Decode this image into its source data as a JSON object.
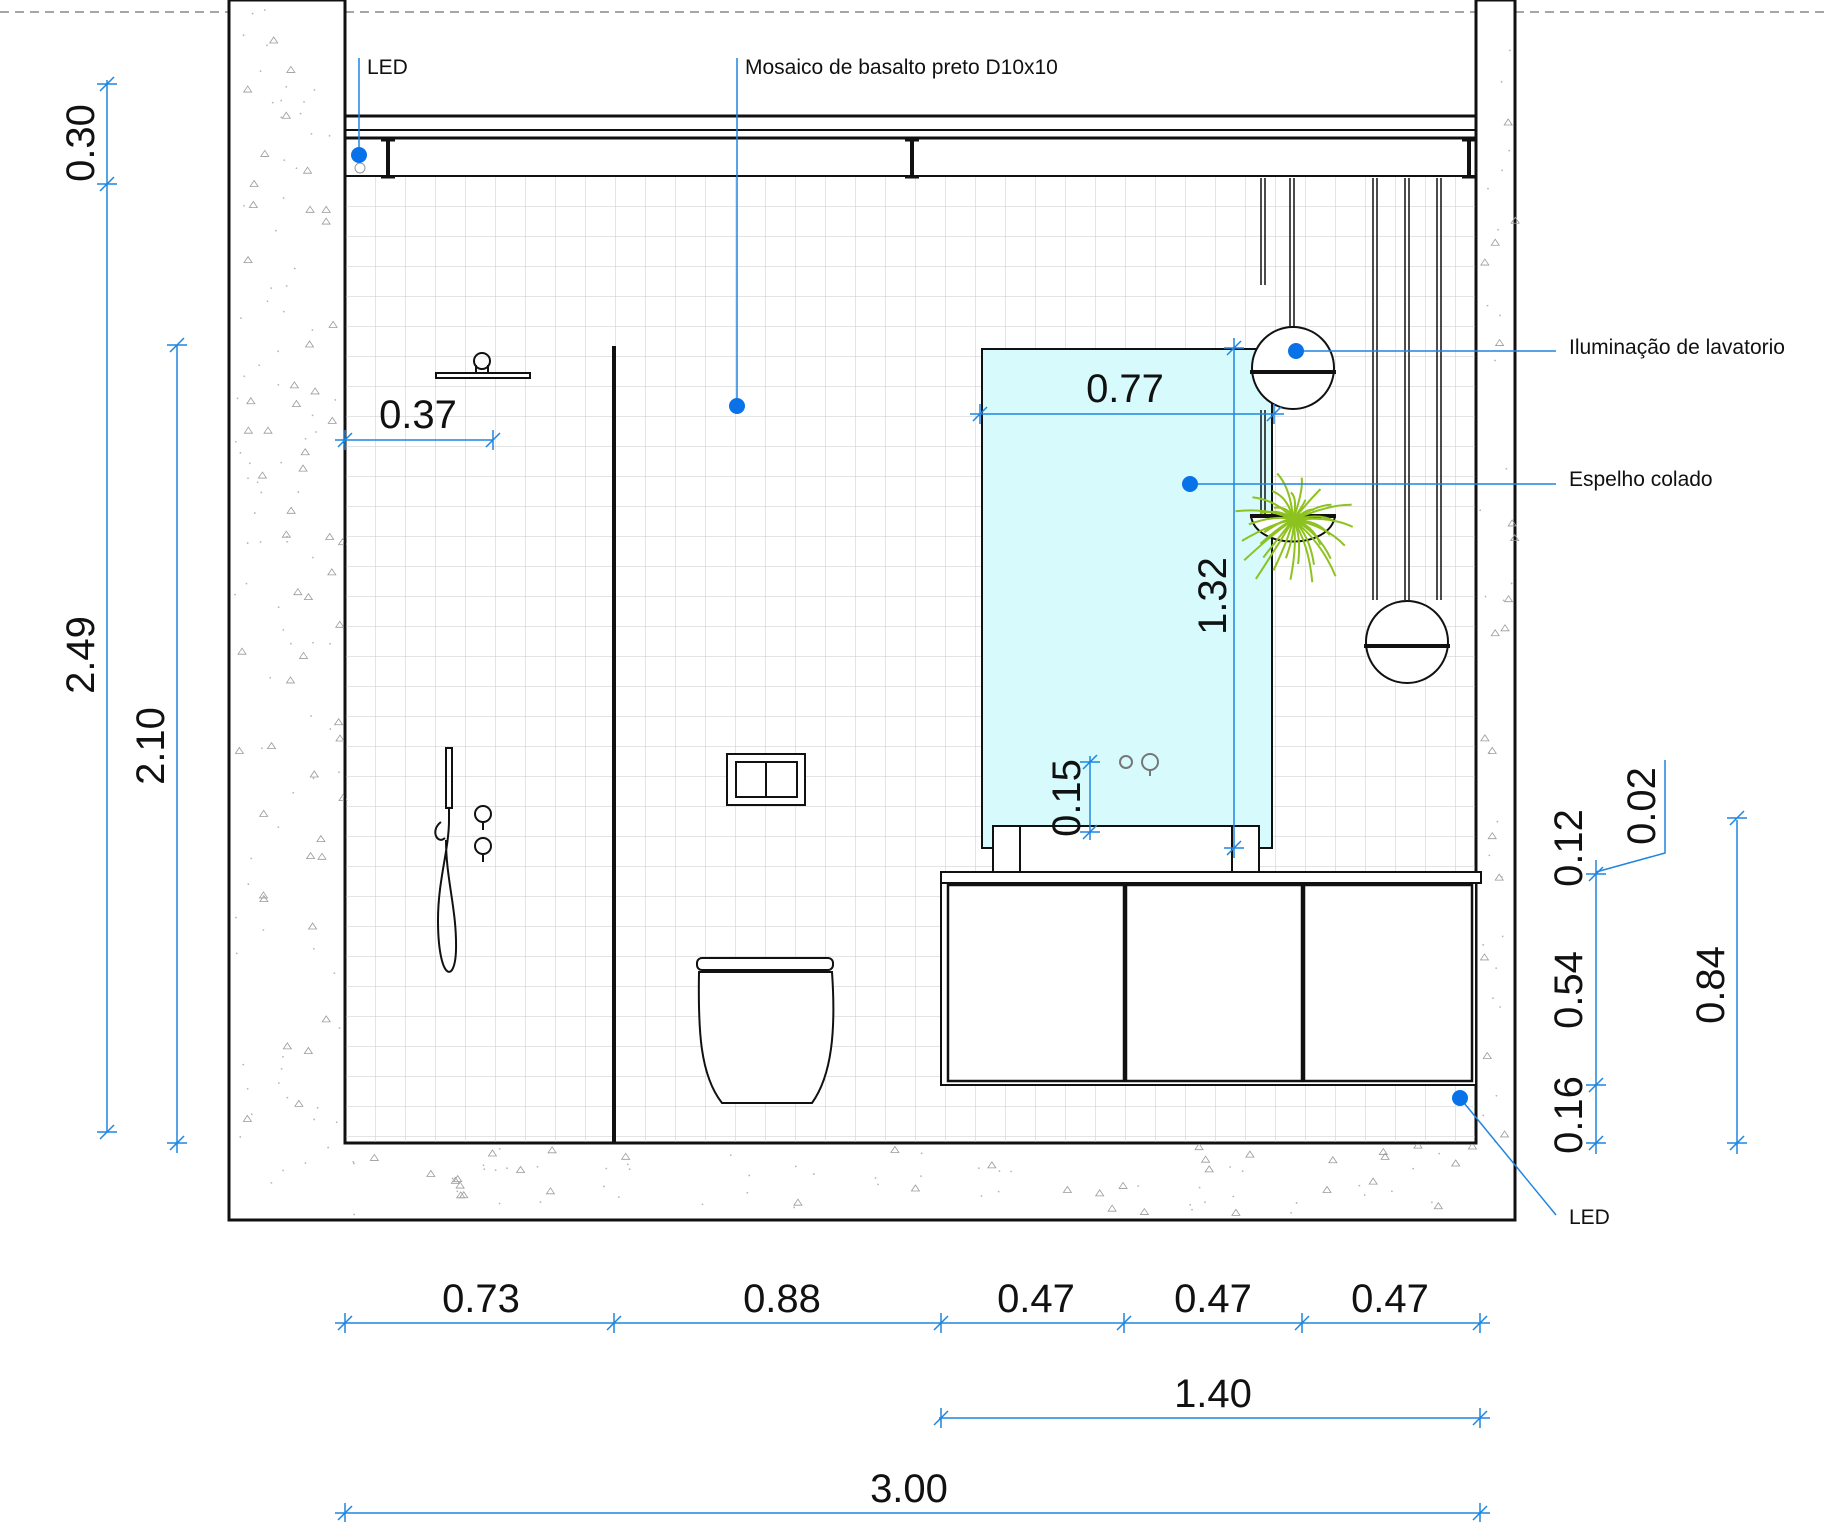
{
  "annotations": {
    "led_top": "LED",
    "mosaic": "Mosaico de basalto preto D10x10",
    "lighting": "Iluminação de lavatorio",
    "mirror": "Espelho colado",
    "led_bottom": "LED"
  },
  "dimensions": {
    "horizontal": {
      "seg_1": "0.73",
      "seg_2": "0.88",
      "seg_3": "0.47",
      "seg_4": "0.47",
      "seg_5": "0.47",
      "vanity_total": "1.40",
      "total": "3.00"
    },
    "vertical": {
      "ceiling_gap": "0.30",
      "wall_height": "2.49",
      "partition_height": "2.10",
      "mirror_height": "1.32",
      "tap_offset": "0.15",
      "countertop": "0.02",
      "basin": "0.12",
      "cabinet": "0.54",
      "led_gap": "0.16",
      "vanity_height": "0.84"
    },
    "other": {
      "shower_head_offset": "0.37",
      "mirror_width": "0.77"
    }
  },
  "colors": {
    "line": "#111111",
    "dimension_blue": "#1f86e0",
    "marker_blue": "#0a72e8",
    "mirror_fill": "#d7fbfd",
    "tile_grid": "#c9c9c9",
    "plant_green": "#8dc21f"
  }
}
